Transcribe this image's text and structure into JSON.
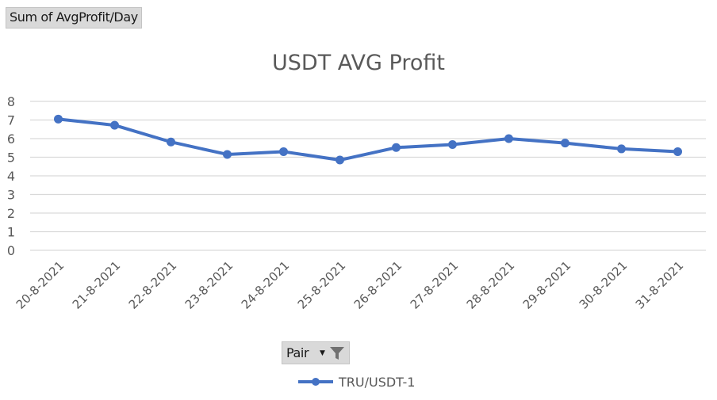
{
  "pivot": {
    "value_field_label": "Sum of AvgProfit/Day",
    "row_field_label": "Pair",
    "filter_icon": "funnel-icon",
    "dropdown_icon": "chevron-down-icon"
  },
  "chart_data": {
    "type": "line",
    "title": "USDT AVG Profit",
    "xlabel": "",
    "ylabel": "",
    "categories": [
      "20-8-2021",
      "21-8-2021",
      "22-8-2021",
      "23-8-2021",
      "24-8-2021",
      "25-8-2021",
      "26-8-2021",
      "27-8-2021",
      "28-8-2021",
      "29-8-2021",
      "30-8-2021",
      "31-8-2021"
    ],
    "series": [
      {
        "name": "TRU/USDT-1",
        "color": "#4472c4",
        "values": [
          7.05,
          6.72,
          5.82,
          5.15,
          5.3,
          4.85,
          5.52,
          5.68,
          6.0,
          5.76,
          5.45,
          5.3
        ]
      }
    ],
    "ylim": [
      0,
      8
    ],
    "yticks": [
      0,
      1,
      2,
      3,
      4,
      5,
      6,
      7,
      8
    ],
    "grid": true,
    "gridline_color": "#d9d9d9",
    "legend_position": "bottom"
  }
}
